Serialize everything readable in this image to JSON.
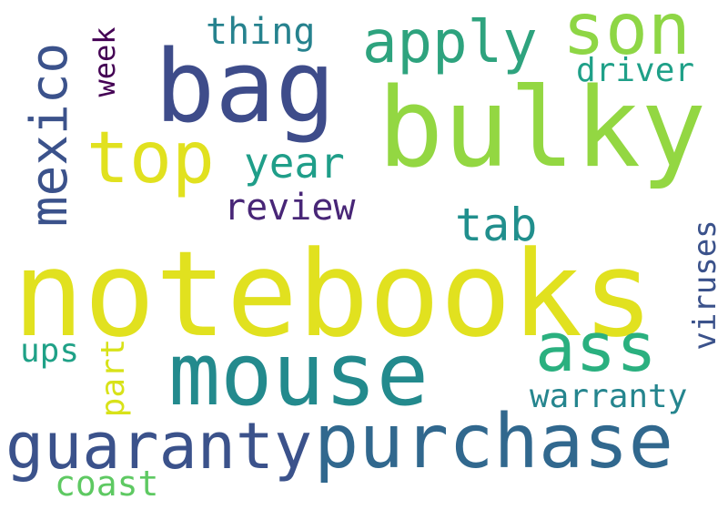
{
  "words": [
    {
      "text": "notebooks",
      "color": "#e1e11f"
    },
    {
      "text": "bulky",
      "color": "#93d742"
    },
    {
      "text": "bag",
      "color": "#3e4c8a"
    },
    {
      "text": "mouse",
      "color": "#238a8d"
    },
    {
      "text": "purchase",
      "color": "#31688e"
    },
    {
      "text": "guaranty",
      "color": "#3b528b"
    },
    {
      "text": "son",
      "color": "#8ed645"
    },
    {
      "text": "apply",
      "color": "#2ea37e"
    },
    {
      "text": "top",
      "color": "#e1e11f"
    },
    {
      "text": "mexico",
      "color": "#3b528b"
    },
    {
      "text": "ass",
      "color": "#2ab07f"
    },
    {
      "text": "year",
      "color": "#1f9e89"
    },
    {
      "text": "tab",
      "color": "#218f8d"
    },
    {
      "text": "review",
      "color": "#482677"
    },
    {
      "text": "thing",
      "color": "#26828e"
    },
    {
      "text": "driver",
      "color": "#1fa088"
    },
    {
      "text": "week",
      "color": "#440154"
    },
    {
      "text": "warranty",
      "color": "#25858e"
    },
    {
      "text": "viruses",
      "color": "#3b528b"
    },
    {
      "text": "ups",
      "color": "#1fa187"
    },
    {
      "text": "part",
      "color": "#d8e219"
    },
    {
      "text": "coast",
      "color": "#5ec962"
    }
  ]
}
